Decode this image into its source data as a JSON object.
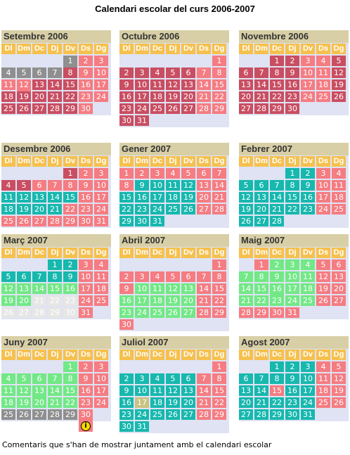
{
  "title": "Calendari escolar del curs 2006-2007",
  "weekdays": [
    "Dl",
    "Dm",
    "Dc",
    "Dj",
    "Dv",
    "Ds",
    "Dg"
  ],
  "legend_colors": {
    "red": "#c94e62",
    "pink": "#f57c82",
    "teal": "#17b8ae",
    "green": "#72e886",
    "lgray": "#e6e6e6",
    "gray": "#8f8f8f",
    "olive": "#c9c282",
    "info_icon": "#f2d900"
  },
  "months": [
    {
      "name": "Setembre 2006",
      "offset": 4,
      "days": [
        "gray-i",
        "pink",
        "pink",
        "gray",
        "gray",
        "gray",
        "gray",
        "red",
        "pink",
        "pink",
        "pink",
        "pink-i",
        "red",
        "red",
        "red",
        "pink",
        "pink",
        "red",
        "red",
        "red",
        "red",
        "red",
        "pink",
        "pink",
        "red",
        "red",
        "red",
        "red",
        "red",
        "pink"
      ]
    },
    {
      "name": "Octubre 2006",
      "offset": 6,
      "days": [
        "pink",
        "red",
        "red",
        "red",
        "red",
        "red",
        "pink",
        "pink",
        "red",
        "red",
        "red",
        "red",
        "red",
        "pink",
        "pink",
        "red",
        "red",
        "red",
        "red",
        "red",
        "pink",
        "pink",
        "red",
        "red",
        "red",
        "red",
        "red",
        "pink",
        "pink",
        "red",
        "red"
      ]
    },
    {
      "name": "Novembre 2006",
      "offset": 2,
      "days": [
        "red",
        "red",
        "pink",
        "pink",
        "red",
        "red",
        "red",
        "red",
        "red",
        "pink",
        "pink",
        "red",
        "red",
        "red",
        "red",
        "red",
        "pink",
        "pink",
        "red",
        "red",
        "red",
        "red",
        "red",
        "pink",
        "pink",
        "red",
        "red",
        "red",
        "red",
        "red"
      ]
    },
    {
      "name": "Desembre 2006",
      "offset": 4,
      "days": [
        "red",
        "pink",
        "pink",
        "red",
        "red",
        "pink",
        "pink",
        "pink",
        "pink",
        "pink",
        "teal",
        "teal",
        "teal",
        "teal",
        "teal",
        "pink",
        "pink",
        "teal",
        "teal",
        "teal",
        "teal",
        "pink",
        "pink",
        "pink",
        "pink",
        "pink",
        "pink",
        "pink",
        "pink",
        "pink",
        "pink"
      ]
    },
    {
      "name": "Gener 2007",
      "offset": 0,
      "days": [
        "pink",
        "pink",
        "pink",
        "pink",
        "pink",
        "pink",
        "pink",
        "pink",
        "teal",
        "teal",
        "teal",
        "teal",
        "pink",
        "pink",
        "teal",
        "teal",
        "teal",
        "teal",
        "teal",
        "pink",
        "pink",
        "teal",
        "teal",
        "teal",
        "teal",
        "teal",
        "pink",
        "pink",
        "teal",
        "teal",
        "teal"
      ]
    },
    {
      "name": "Febrer 2007",
      "offset": 3,
      "days": [
        "teal",
        "teal",
        "pink",
        "pink",
        "teal",
        "teal",
        "teal",
        "teal",
        "teal",
        "pink",
        "pink",
        "teal",
        "teal",
        "teal",
        "teal",
        "teal",
        "pink",
        "pink",
        "teal",
        "teal",
        "teal",
        "teal",
        "teal",
        "pink",
        "pink",
        "teal",
        "teal",
        "teal"
      ]
    },
    {
      "name": "Març 2007",
      "offset": 3,
      "days": [
        "teal",
        "teal",
        "pink",
        "pink",
        "teal",
        "teal",
        "teal",
        "teal",
        "teal",
        "pink",
        "pink",
        "green",
        "green",
        "green",
        "green",
        "green",
        "pink",
        "pink",
        "green",
        "green",
        "lgray",
        "lgray",
        "lgray",
        "pink",
        "pink",
        "lgray",
        "lgray",
        "lgray",
        "lgray",
        "lgray",
        "pink"
      ]
    },
    {
      "name": "Abril 2007",
      "offset": 6,
      "days": [
        "pink",
        "pink",
        "pink",
        "pink",
        "pink",
        "pink",
        "pink",
        "pink",
        "pink",
        "green",
        "green",
        "green",
        "green",
        "pink",
        "pink",
        "green",
        "green",
        "green",
        "green",
        "green",
        "pink",
        "pink",
        "green",
        "green",
        "green",
        "green",
        "green",
        "pink",
        "pink",
        "pink"
      ]
    },
    {
      "name": "Maig 2007",
      "offset": 1,
      "days": [
        "pink",
        "green",
        "green",
        "green",
        "pink",
        "pink",
        "green",
        "green",
        "green",
        "green",
        "green",
        "pink",
        "pink",
        "green",
        "green",
        "green-i",
        "green",
        "green",
        "pink",
        "pink",
        "green",
        "green",
        "green",
        "green",
        "green",
        "pink",
        "pink",
        "pink",
        "pink",
        "pink",
        "pink"
      ]
    },
    {
      "name": "Juny 2007",
      "offset": 4,
      "days": [
        "green",
        "pink",
        "pink",
        "green",
        "green",
        "green",
        "green",
        "green",
        "pink",
        "pink",
        "green",
        "green",
        "green-i",
        "green",
        "green",
        "pink",
        "pink",
        "green",
        "green",
        "green",
        "green",
        "green",
        "pink",
        "pink",
        "gray",
        "gray",
        "gray",
        "gray",
        "gray",
        "pink-i"
      ]
    },
    {
      "name": "Juliol 2007",
      "offset": 6,
      "days": [
        "pink",
        "teal",
        "teal",
        "teal",
        "teal",
        "teal",
        "pink",
        "pink",
        "teal",
        "teal",
        "teal",
        "teal",
        "teal",
        "pink",
        "pink",
        "teal",
        "olive",
        "teal",
        "teal",
        "teal",
        "pink",
        "pink",
        "teal",
        "teal",
        "teal",
        "teal",
        "teal",
        "pink",
        "pink",
        "teal",
        "teal"
      ]
    },
    {
      "name": "Agost 2007",
      "offset": 2,
      "days": [
        "teal",
        "teal",
        "teal",
        "pink",
        "pink",
        "teal",
        "teal",
        "teal",
        "teal",
        "teal",
        "pink",
        "pink",
        "teal",
        "teal",
        "pink",
        "teal",
        "teal",
        "pink",
        "pink",
        "teal",
        "teal",
        "teal",
        "teal",
        "teal",
        "pink",
        "pink",
        "teal",
        "teal",
        "teal",
        "teal",
        "teal"
      ]
    }
  ],
  "footer": "Comentaris que s'han de mostrar juntament amb el calendari escolar"
}
